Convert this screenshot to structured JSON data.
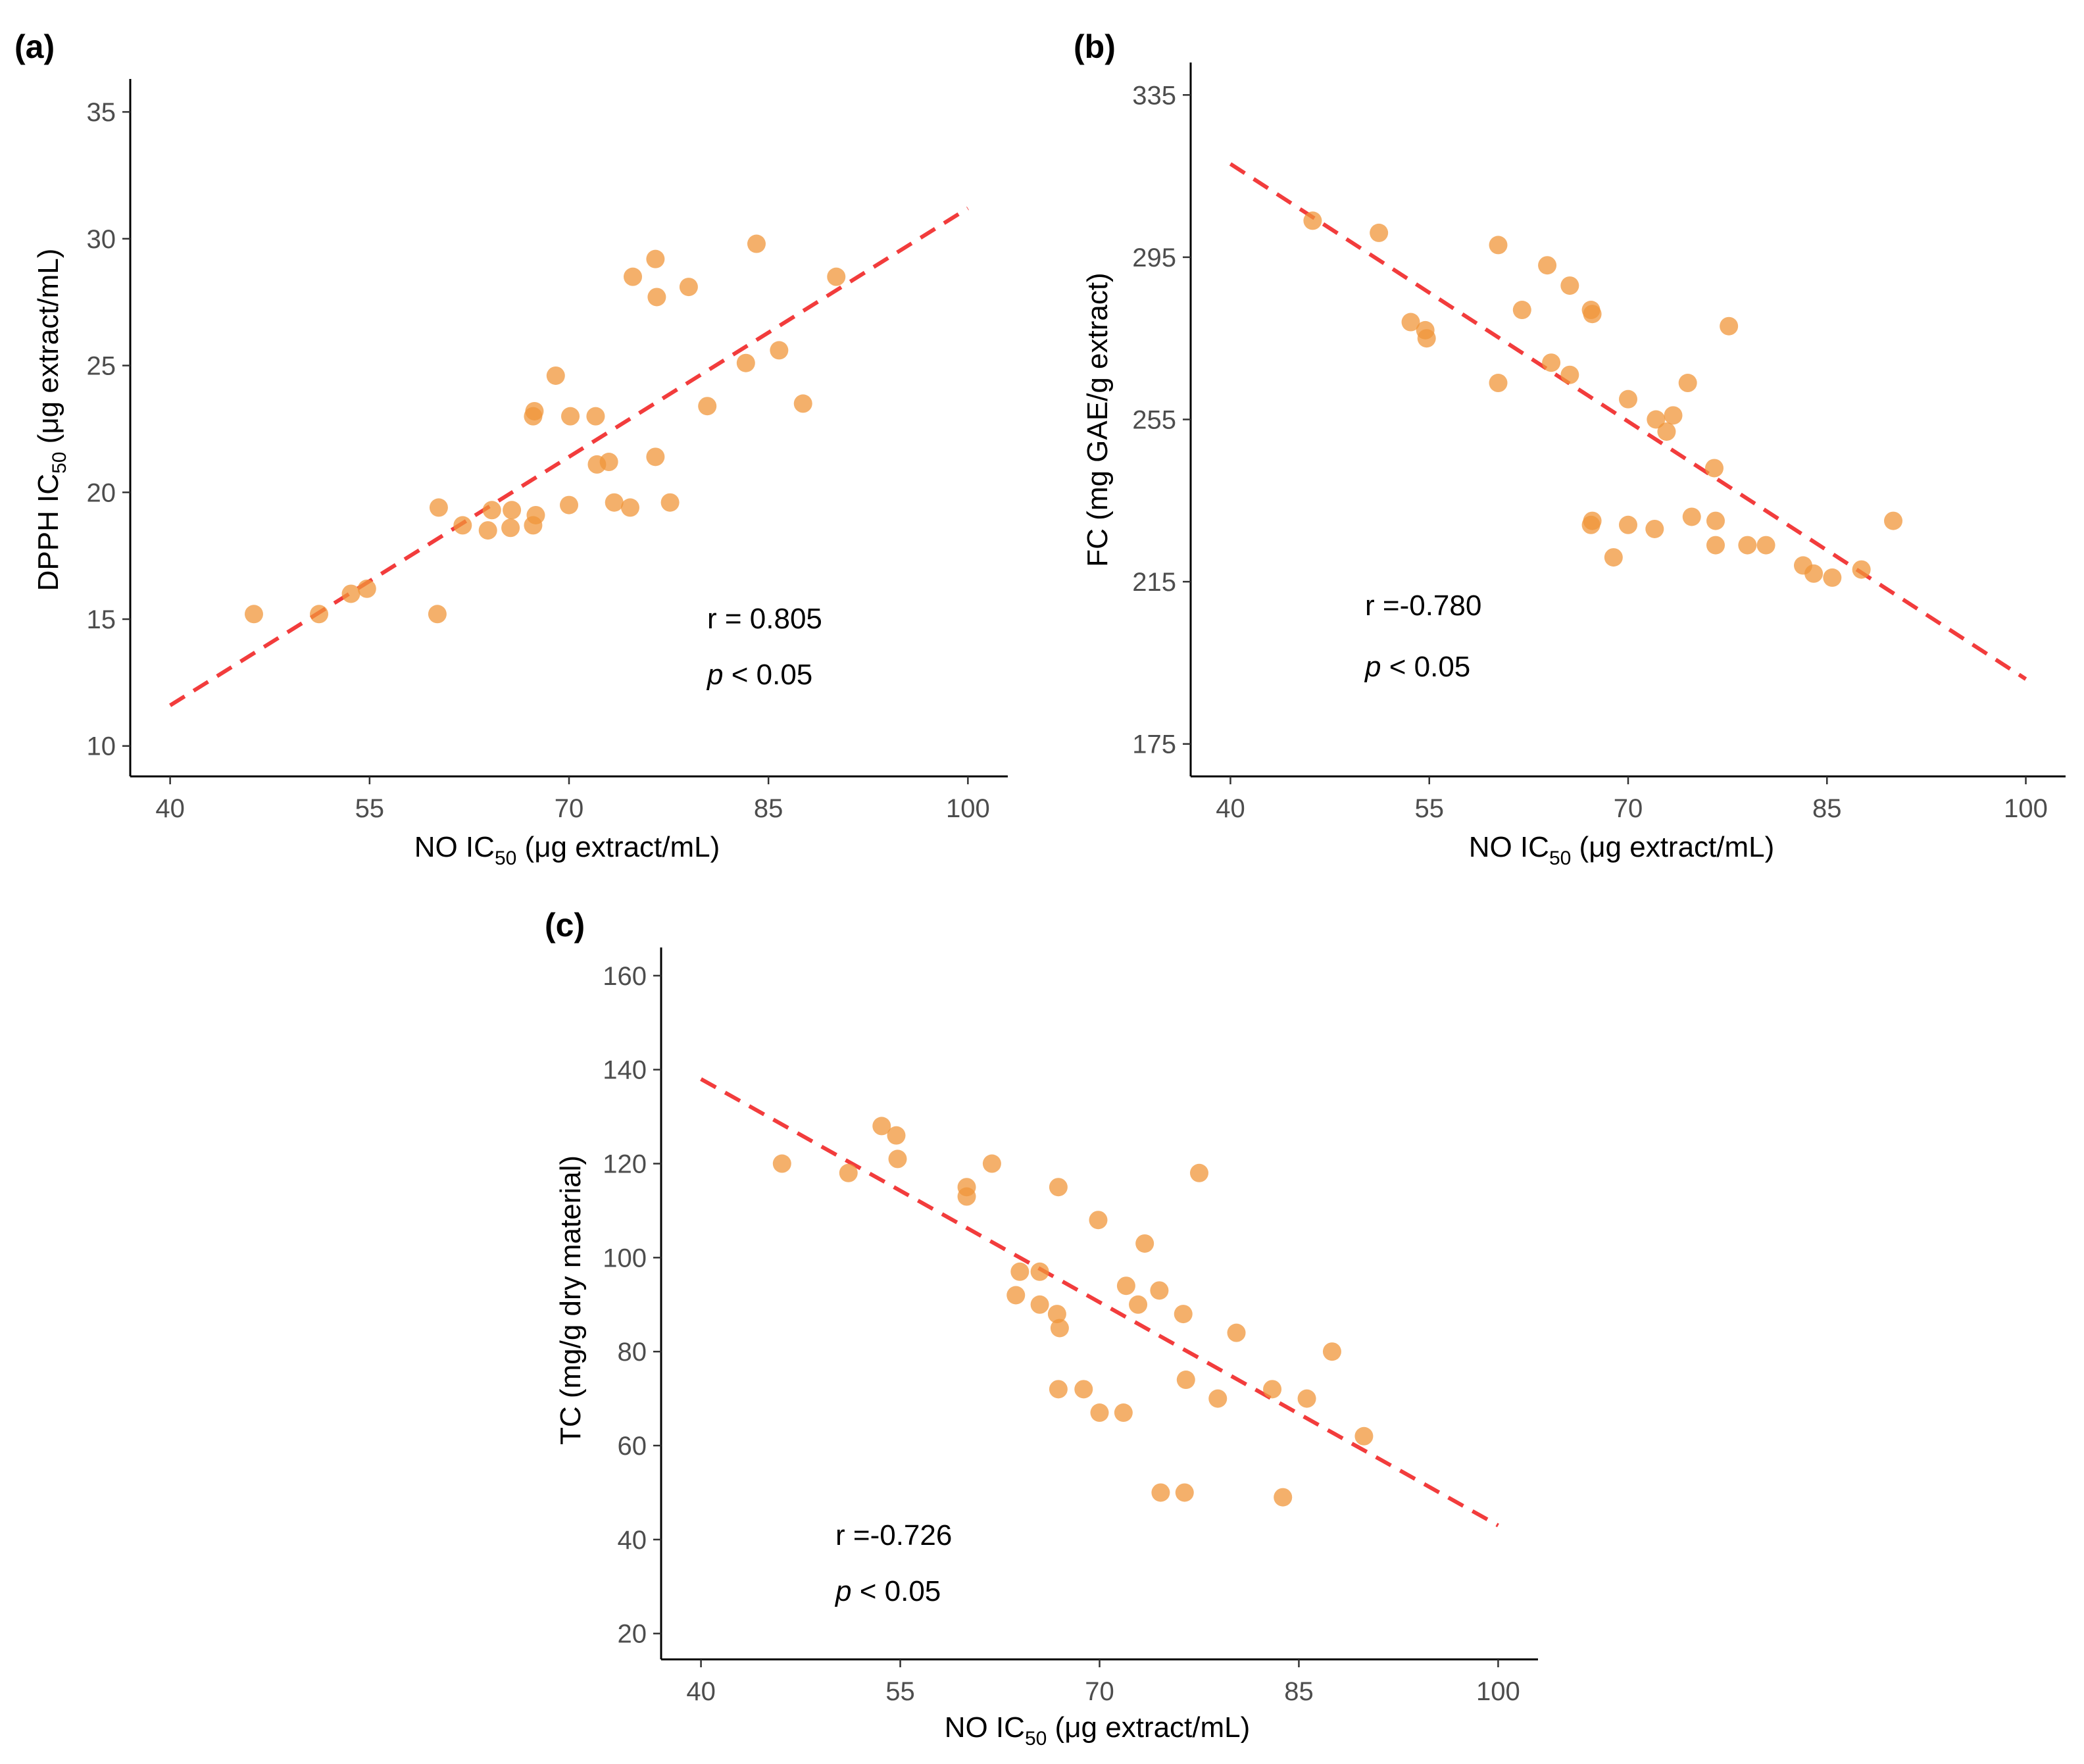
{
  "chart_data": [
    {
      "type": "scatter",
      "panel_label": "(a)",
      "xlabel_parts": [
        "NO  IC",
        "50",
        " (μg  extract/mL)"
      ],
      "ylabel_parts": [
        "DPPH  IC",
        "50",
        " (μg extract/mL)"
      ],
      "xlim": [
        37,
        103
      ],
      "ylim": [
        8.8,
        36.3
      ],
      "xticks": [
        40,
        55,
        70,
        85,
        100
      ],
      "yticks": [
        10,
        15,
        20,
        25,
        30,
        35
      ],
      "annotations": {
        "r": "r = 0.805",
        "p_italic": "p",
        "p_rest": " < 0.05"
      },
      "fit_line": {
        "x": [
          40,
          100
        ],
        "y": [
          11.6,
          31.2
        ],
        "style": "dashed",
        "color": "#f23c3c"
      },
      "points": [
        [
          46.3,
          15.2
        ],
        [
          51.2,
          15.2
        ],
        [
          53.6,
          16.0
        ],
        [
          54.8,
          16.2
        ],
        [
          60.1,
          15.2
        ],
        [
          60.2,
          19.4
        ],
        [
          62.0,
          18.7
        ],
        [
          63.9,
          18.5
        ],
        [
          64.2,
          19.3
        ],
        [
          65.6,
          18.6
        ],
        [
          65.7,
          19.3
        ],
        [
          67.3,
          18.7
        ],
        [
          67.5,
          19.1
        ],
        [
          67.3,
          23.0
        ],
        [
          67.4,
          23.2
        ],
        [
          69.0,
          24.6
        ],
        [
          70.1,
          23.0
        ],
        [
          70.0,
          19.5
        ],
        [
          72.0,
          23.0
        ],
        [
          72.1,
          21.1
        ],
        [
          73.0,
          21.2
        ],
        [
          73.4,
          19.6
        ],
        [
          74.6,
          19.4
        ],
        [
          74.8,
          28.5
        ],
        [
          76.5,
          29.2
        ],
        [
          76.6,
          27.7
        ],
        [
          76.5,
          21.4
        ],
        [
          77.6,
          19.6
        ],
        [
          79.0,
          28.1
        ],
        [
          80.4,
          23.4
        ],
        [
          83.3,
          25.1
        ],
        [
          84.1,
          29.8
        ],
        [
          85.8,
          25.6
        ],
        [
          87.6,
          23.5
        ],
        [
          90.1,
          28.5
        ]
      ]
    },
    {
      "type": "scatter",
      "panel_label": "(b)",
      "xlabel_parts": [
        "NO  IC",
        "50",
        " (μg extract/mL)"
      ],
      "ylabel_parts": [
        "FC (mg GAE/g extract)"
      ],
      "xlim": [
        37,
        103
      ],
      "ylim": [
        167,
        343
      ],
      "xticks": [
        40,
        55,
        70,
        85,
        100
      ],
      "yticks": [
        175,
        215,
        255,
        295,
        335
      ],
      "annotations": {
        "r": "r =-0.780",
        "p_italic": "p",
        "p_rest": " < 0.05"
      },
      "fit_line": {
        "x": [
          40,
          100
        ],
        "y": [
          318,
          191
        ],
        "style": "dashed",
        "color": "#f23c3c"
      },
      "points": [
        [
          46.2,
          304
        ],
        [
          51.2,
          301
        ],
        [
          53.6,
          279
        ],
        [
          54.7,
          277
        ],
        [
          54.8,
          275
        ],
        [
          60.2,
          298
        ],
        [
          60.2,
          264
        ],
        [
          62.0,
          282
        ],
        [
          63.9,
          293
        ],
        [
          64.2,
          269
        ],
        [
          65.6,
          288
        ],
        [
          65.6,
          266
        ],
        [
          67.2,
          282
        ],
        [
          67.3,
          281
        ],
        [
          67.3,
          230
        ],
        [
          67.2,
          229
        ],
        [
          68.9,
          221
        ],
        [
          70.0,
          229
        ],
        [
          70.0,
          260
        ],
        [
          72.0,
          228
        ],
        [
          72.1,
          255
        ],
        [
          72.9,
          252
        ],
        [
          73.4,
          256
        ],
        [
          74.5,
          264
        ],
        [
          74.8,
          231
        ],
        [
          76.5,
          243
        ],
        [
          76.6,
          230
        ],
        [
          76.6,
          224
        ],
        [
          77.6,
          278
        ],
        [
          79.0,
          224
        ],
        [
          80.4,
          224
        ],
        [
          83.2,
          219
        ],
        [
          84.0,
          217
        ],
        [
          85.4,
          216
        ],
        [
          87.6,
          218
        ],
        [
          90.0,
          230
        ]
      ]
    },
    {
      "type": "scatter",
      "panel_label": "(c)",
      "xlabel_parts": [
        "NO  IC",
        "50",
        " (μg extract/mL)"
      ],
      "ylabel_parts": [
        "TC (mg/g dry material)"
      ],
      "xlim": [
        37,
        103
      ],
      "ylim": [
        14.5,
        166
      ],
      "xticks": [
        40,
        55,
        70,
        85,
        100
      ],
      "yticks": [
        20,
        40,
        60,
        80,
        100,
        120,
        140,
        160
      ],
      "annotations": {
        "r": "r =-0.726",
        "p_italic": "p",
        "p_rest": " < 0.05"
      },
      "fit_line": {
        "x": [
          40,
          100
        ],
        "y": [
          138,
          43
        ],
        "style": "dashed",
        "color": "#f23c3c"
      },
      "points": [
        [
          46.1,
          120
        ],
        [
          51.1,
          118
        ],
        [
          53.6,
          128
        ],
        [
          54.7,
          126
        ],
        [
          54.8,
          121
        ],
        [
          60.0,
          115
        ],
        [
          60.0,
          113
        ],
        [
          61.9,
          120
        ],
        [
          63.7,
          92
        ],
        [
          64.0,
          97
        ],
        [
          65.5,
          97
        ],
        [
          65.5,
          90
        ],
        [
          66.9,
          115
        ],
        [
          66.8,
          88
        ],
        [
          67.0,
          85
        ],
        [
          66.9,
          72
        ],
        [
          68.8,
          72
        ],
        [
          69.9,
          108
        ],
        [
          70.0,
          67
        ],
        [
          71.8,
          67
        ],
        [
          72.0,
          94
        ],
        [
          72.9,
          90
        ],
        [
          73.4,
          103
        ],
        [
          74.5,
          93
        ],
        [
          74.6,
          50
        ],
        [
          76.3,
          88
        ],
        [
          76.4,
          50
        ],
        [
          76.5,
          74
        ],
        [
          77.5,
          118
        ],
        [
          78.9,
          70
        ],
        [
          80.3,
          84
        ],
        [
          83.0,
          72
        ],
        [
          83.8,
          49
        ],
        [
          85.6,
          70
        ],
        [
          87.5,
          80
        ],
        [
          89.9,
          62
        ]
      ]
    }
  ]
}
